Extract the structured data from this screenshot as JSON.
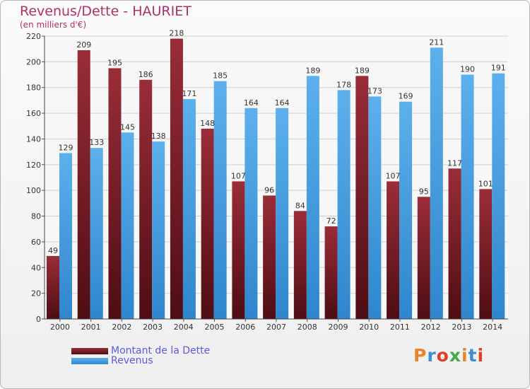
{
  "chart_data": {
    "type": "bar",
    "title": "Revenus/Dette - HAURIET",
    "subtitle": "(en milliers d'€)",
    "categories": [
      "2000",
      "2001",
      "2002",
      "2003",
      "2004",
      "2005",
      "2006",
      "2007",
      "2008",
      "2009",
      "2010",
      "2011",
      "2012",
      "2013",
      "2014"
    ],
    "series": [
      {
        "name": "Montant de la Dette",
        "color": "#7a1f2b",
        "values": [
          49,
          209,
          195,
          186,
          218,
          148,
          107,
          96,
          84,
          72,
          189,
          107,
          95,
          117,
          101
        ]
      },
      {
        "name": "Revenus",
        "color": "#3f9de2",
        "values": [
          129,
          133,
          145,
          138,
          171,
          185,
          164,
          164,
          189,
          178,
          173,
          169,
          211,
          190,
          191
        ]
      }
    ],
    "ylim": [
      0,
      220
    ],
    "yticks": [
      0,
      20,
      40,
      60,
      80,
      100,
      120,
      140,
      160,
      180,
      200,
      220
    ],
    "grid": true,
    "legend_position": "bottom-left",
    "logo_text": "Proxiti",
    "logo_colors": [
      "#e8842a",
      "#3a8fd8",
      "#e0402a",
      "#4aa84a",
      "#e8842a",
      "#3a8fd8",
      "#e0402a"
    ]
  }
}
